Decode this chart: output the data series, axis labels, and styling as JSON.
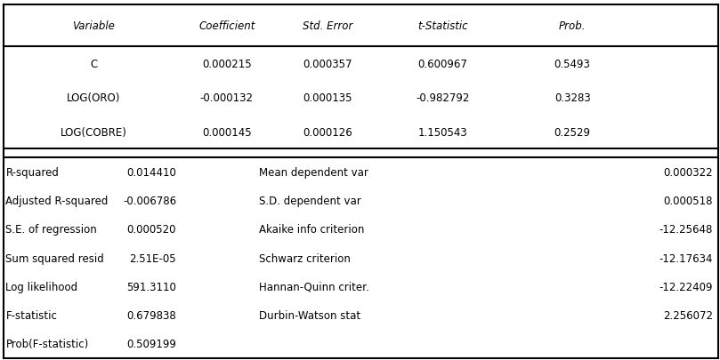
{
  "header": [
    "Variable",
    "Coefficient",
    "Std. Error",
    "t-Statistic",
    "Prob."
  ],
  "top_rows": [
    [
      "C",
      "0.000215",
      "0.000357",
      "0.600967",
      "0.5493"
    ],
    [
      "LOG(ORO)",
      "-0.000132",
      "0.000135",
      "-0.982792",
      "0.3283"
    ],
    [
      "LOG(COBRE)",
      "0.000145",
      "0.000126",
      "1.150543",
      "0.2529"
    ]
  ],
  "bottom_left": [
    [
      "R-squared",
      "0.014410"
    ],
    [
      "Adjusted R-squared",
      "-0.006786"
    ],
    [
      "S.E. of regression",
      "0.000520"
    ],
    [
      "Sum squared resid",
      "2.51E-05"
    ],
    [
      "Log likelihood",
      "591.3110"
    ],
    [
      "F-statistic",
      "0.679838"
    ],
    [
      "Prob(F-statistic)",
      "0.509199"
    ]
  ],
  "bottom_right": [
    [
      "Mean dependent var",
      "0.000322"
    ],
    [
      "S.D. dependent var",
      "0.000518"
    ],
    [
      "Akaike info criterion",
      "-12.25648"
    ],
    [
      "Schwarz criterion",
      "-12.17634"
    ],
    [
      "Hannan-Quinn criter.",
      "-12.22409"
    ],
    [
      "Durbin-Watson stat",
      "2.256072"
    ]
  ],
  "bg_color": "#ffffff",
  "line_color": "#000000",
  "font_size": 8.5,
  "header_font_size": 8.5
}
